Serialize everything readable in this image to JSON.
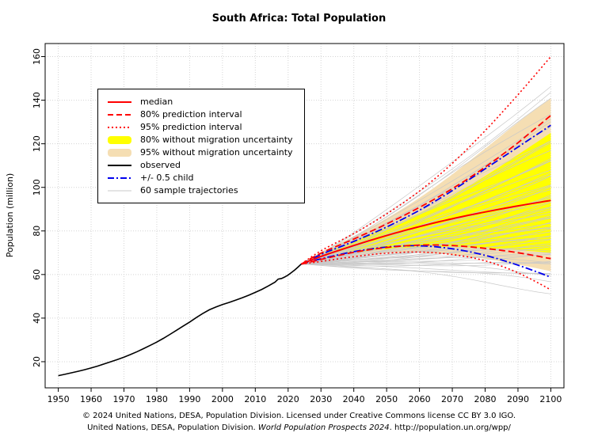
{
  "page": {
    "title": "South Africa: Total Population",
    "footer_line1": "© 2024 United Nations, DESA, Population Division. Licensed under Creative Commons license CC BY 3.0 IGO.",
    "footer_line2_prefix": "United Nations, DESA, Population Division. ",
    "footer_line2_italic": "World Population Prospects 2024",
    "footer_line2_suffix": ". http://population.un.org/wpp/"
  },
  "legend": {
    "items": [
      {
        "label": "median"
      },
      {
        "label": "80% prediction interval"
      },
      {
        "label": "95% prediction interval"
      },
      {
        "label": "80% without migration uncertainty"
      },
      {
        "label": "95% without migration uncertainty"
      },
      {
        "label": "observed"
      },
      {
        "label": "+/- 0.5 child"
      },
      {
        "label": "60 sample trajectories"
      }
    ]
  },
  "chart_data": {
    "type": "line",
    "title": "South Africa: Total Population",
    "xlabel": "",
    "ylabel": "Population (million)",
    "xlim": [
      1946,
      2104
    ],
    "ylim": [
      8,
      166
    ],
    "xticks": [
      1950,
      1960,
      1970,
      1980,
      1990,
      2000,
      2010,
      2020,
      2030,
      2040,
      2050,
      2060,
      2070,
      2080,
      2090,
      2100
    ],
    "yticks": [
      20,
      40,
      60,
      80,
      100,
      120,
      140,
      160
    ],
    "grid": true,
    "legend_position": "top-left",
    "colors": {
      "median": "#ff0000",
      "half_child": "#0000ee",
      "observed": "#000000",
      "band80": "#ffff00",
      "band95": "#f5deb3",
      "trajectories": "#c9c9c9",
      "grid": "#d4d4d4",
      "axis": "#000000"
    },
    "observed": {
      "x": [
        1950,
        1952,
        1954,
        1956,
        1958,
        1960,
        1962,
        1964,
        1966,
        1968,
        1970,
        1972,
        1974,
        1976,
        1978,
        1980,
        1982,
        1984,
        1986,
        1988,
        1990,
        1992,
        1994,
        1996,
        1998,
        2000,
        2002,
        2004,
        2006,
        2008,
        2010,
        2012,
        2014,
        2016,
        2017,
        2018,
        2019,
        2020,
        2021,
        2022,
        2023,
        2024
      ],
      "y": [
        13.6,
        14.2,
        14.9,
        15.6,
        16.3,
        17.1,
        18.0,
        19.0,
        20.0,
        21.0,
        22.1,
        23.3,
        24.6,
        26.0,
        27.5,
        29.0,
        30.7,
        32.5,
        34.4,
        36.3,
        38.2,
        40.2,
        42.1,
        43.8,
        45.1,
        46.2,
        47.2,
        48.2,
        49.3,
        50.5,
        51.8,
        53.2,
        54.8,
        56.5,
        57.9,
        58.2,
        58.9,
        59.8,
        60.9,
        62.1,
        63.4,
        64.8
      ]
    },
    "projection_years": [
      2024,
      2030,
      2040,
      2050,
      2060,
      2070,
      2080,
      2090,
      2100
    ],
    "median": [
      64.8,
      68.3,
      73.3,
      77.9,
      82.0,
      85.6,
      88.7,
      91.5,
      94.0
    ],
    "pi80": {
      "upper": [
        64.8,
        69.8,
        76.3,
        83.2,
        90.8,
        99.4,
        109.3,
        120.5,
        133.0
      ],
      "lower": [
        64.8,
        66.9,
        70.2,
        72.4,
        73.5,
        73.3,
        72.0,
        70.0,
        67.3
      ]
    },
    "pi95": {
      "upper": [
        64.8,
        70.9,
        78.8,
        87.8,
        98.3,
        111.0,
        126.0,
        142.5,
        160.0
      ],
      "lower": [
        64.8,
        66.0,
        68.2,
        69.8,
        70.3,
        69.2,
        66.3,
        60.8,
        53.0
      ]
    },
    "half_child": {
      "upper": [
        64.8,
        69.2,
        75.2,
        81.8,
        89.5,
        98.5,
        108.5,
        118.5,
        128.5
      ],
      "lower": [
        64.8,
        67.2,
        70.5,
        72.6,
        73.2,
        71.8,
        68.8,
        64.3,
        58.8
      ]
    },
    "band80_no_migration": {
      "upper": [
        64.8,
        69.4,
        75.2,
        81.3,
        88.2,
        96.2,
        105.2,
        115.0,
        125.0
      ],
      "lower": [
        64.8,
        67.1,
        69.8,
        71.6,
        72.6,
        72.7,
        72.2,
        71.2,
        70.0
      ]
    },
    "band95_no_migration": {
      "upper": [
        64.8,
        70.3,
        77.6,
        85.8,
        95.2,
        106.0,
        117.8,
        129.8,
        141.0
      ],
      "lower": [
        64.8,
        66.4,
        68.6,
        69.9,
        70.0,
        69.1,
        67.2,
        64.6,
        61.5
      ]
    },
    "sample_trajectories": {
      "count": 60,
      "start_year": 2024,
      "start_value": 64.8,
      "end_year": 2100,
      "end_values": [
        147,
        143,
        139,
        135.5,
        132,
        129,
        126.5,
        124,
        121.5,
        119,
        117,
        115,
        113,
        111,
        109,
        107.5,
        106,
        104.5,
        103,
        101.5,
        100,
        98.7,
        97.4,
        96.2,
        95,
        93.8,
        92.6,
        91.5,
        90.4,
        89.3,
        88.2,
        87.1,
        86,
        85,
        84,
        83,
        82,
        81,
        80,
        79,
        78,
        77,
        76,
        75,
        74,
        73,
        72,
        71,
        70,
        69,
        68,
        67,
        66,
        64.8,
        63.5,
        62,
        60.5,
        59,
        56.5,
        54
      ]
    }
  }
}
